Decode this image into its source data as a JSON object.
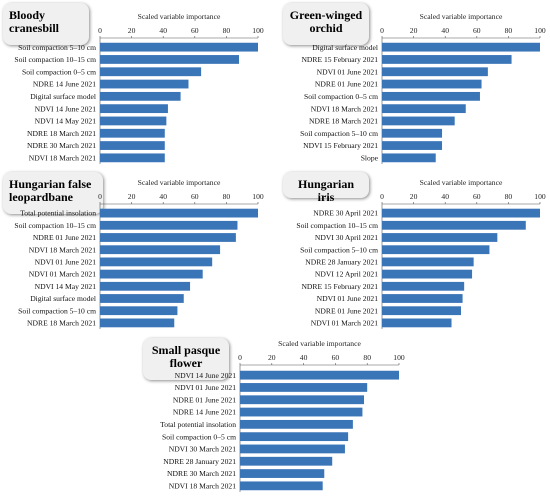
{
  "chart_data": [
    {
      "type": "bar",
      "orientation": "horizontal",
      "title": "Bloody cranesbill",
      "xlabel": "Scaled variable importance",
      "xlim": [
        0,
        100
      ],
      "xticks": [
        "0",
        "20",
        "40",
        "60",
        "80",
        "100"
      ],
      "bar_color": "#3a75b8",
      "categories": [
        "Soil compaction 5–10 cm",
        "Soil compaction 10–15 cm",
        "Soil compaction 0–5 cm",
        "NDRE 14 June 2021",
        "Digital surface model",
        "NDVI 14 June 2021",
        "NDVI 14 May 2021",
        "NDRE 18 March 2021",
        "NDRE 30 March 2021",
        "NDVI 18 March 2021"
      ],
      "values": [
        100,
        88,
        64,
        56,
        51,
        43,
        42,
        41,
        41,
        41
      ]
    },
    {
      "type": "bar",
      "orientation": "horizontal",
      "title": "Green-winged orchid",
      "xlabel": "Scaled variable importance",
      "xlim": [
        0,
        100
      ],
      "xticks": [
        "0",
        "20",
        "40",
        "60",
        "80",
        "100"
      ],
      "bar_color": "#3a75b8",
      "categories": [
        "Digital surface model",
        "NDRE 15 February 2021",
        "NDVI 01 June 2021",
        "NDRE 01 June 2021",
        "Soil compaction 0–5 cm",
        "NDVI 18 March 2021",
        "NDRE 18 March 2021",
        "Soil compaction 5–10 cm",
        "NDVI 15 February 2021",
        "Slope"
      ],
      "values": [
        100,
        82,
        67,
        63,
        62,
        53,
        46,
        38,
        38,
        34
      ]
    },
    {
      "type": "bar",
      "orientation": "horizontal",
      "title": "Hungarian false leopardbane",
      "xlabel": "Scaled variable importance",
      "xlim": [
        0,
        100
      ],
      "xticks": [
        "0",
        "20",
        "40",
        "60",
        "80",
        "100"
      ],
      "bar_color": "#3a75b8",
      "categories": [
        "Total potential insolation",
        "Soil compaction 10–15 cm",
        "NDRE 01 June 2021",
        "NDVI 18 March 2021",
        "NDVI 01 June 2021",
        "NDVI 01 March 2021",
        "NDVI 14 May 2021",
        "Digital surface model",
        "Soil compaction 5–10 cm",
        "NDRE 18 March 2021"
      ],
      "values": [
        100,
        87,
        86,
        76,
        71,
        65,
        57,
        53,
        49,
        47
      ]
    },
    {
      "type": "bar",
      "orientation": "horizontal",
      "title": "Hungarian iris",
      "xlabel": "Scaled variable importance",
      "xlim": [
        0,
        100
      ],
      "xticks": [
        "0",
        "20",
        "40",
        "60",
        "80",
        "100"
      ],
      "bar_color": "#3a75b8",
      "categories": [
        "NDRE 30 April 2021",
        "Soil compaction 10–15 cm",
        "NDVI 30 April 2021",
        "Soil compaction 5–10 cm",
        "NDRE 28 January 2021",
        "NDVI 12 April 2021",
        "NDRE 15 February 2021",
        "NDVI 01 June 2021",
        "NDRE 01 June 2021",
        "NDVI 01 March 2021"
      ],
      "values": [
        100,
        91,
        73,
        68,
        58,
        57,
        52,
        51,
        50,
        44
      ]
    },
    {
      "type": "bar",
      "orientation": "horizontal",
      "title": "Small pasque flower",
      "xlabel": "Scaled variable importance",
      "xlim": [
        0,
        100
      ],
      "xticks": [
        "0",
        "20",
        "40",
        "60",
        "80",
        "100"
      ],
      "bar_color": "#3a75b8",
      "categories": [
        "NDVI 14 June 2021",
        "NDVI 01 June 2021",
        "NDRE 01 June 2021",
        "NDRE 14 June 2021",
        "Total potential insolation",
        "Soil compaction 0–5 cm",
        "NDVI 30 March 2021",
        "NDRE 28 January 2021",
        "NDRE 30 March 2021",
        "NDVI 18 March 2021"
      ],
      "values": [
        100,
        80,
        78,
        77,
        71,
        68,
        66,
        58,
        53,
        52
      ]
    }
  ]
}
